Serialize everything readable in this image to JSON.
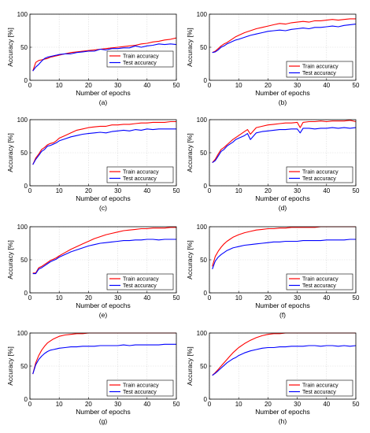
{
  "chart_data": [
    {
      "type": "line",
      "caption": "(a)",
      "xlabel": "Number of epochs",
      "ylabel": "Accuracy [%]",
      "xlim": [
        0,
        50
      ],
      "ylim": [
        0,
        100
      ],
      "xticks": [
        0,
        10,
        20,
        30,
        40,
        50
      ],
      "yticks": [
        0,
        50,
        100
      ],
      "grid": true,
      "legend_position": "right-middle",
      "x": [
        1,
        2,
        3,
        4,
        5,
        6,
        7,
        8,
        9,
        10,
        12,
        14,
        16,
        18,
        20,
        22,
        24,
        26,
        28,
        30,
        32,
        34,
        36,
        38,
        40,
        42,
        44,
        46,
        48,
        50
      ],
      "series": [
        {
          "name": "Train accuracy",
          "color": "#ff0000",
          "values": [
            14,
            27,
            30,
            31,
            32,
            33,
            35,
            36,
            37,
            38,
            40,
            42,
            43,
            44,
            45,
            46,
            47,
            48,
            49,
            50,
            51,
            52,
            53,
            55,
            56,
            58,
            59,
            61,
            62,
            64
          ]
        },
        {
          "name": "Test accuracy",
          "color": "#0000ff",
          "values": [
            14,
            20,
            24,
            29,
            33,
            35,
            36,
            37,
            38,
            39,
            40,
            40,
            42,
            43,
            44,
            44,
            47,
            46,
            48,
            48,
            49,
            49,
            52,
            50,
            52,
            53,
            55,
            54,
            55,
            54
          ]
        }
      ]
    },
    {
      "type": "line",
      "caption": "(b)",
      "xlabel": "Number of epochs",
      "ylabel": "Accuracy [%]",
      "xlim": [
        0,
        50
      ],
      "ylim": [
        0,
        100
      ],
      "xticks": [
        0,
        10,
        20,
        30,
        40,
        50
      ],
      "yticks": [
        0,
        50,
        100
      ],
      "grid": true,
      "legend_position": "bottom-right",
      "x": [
        1,
        2,
        3,
        4,
        5,
        6,
        7,
        8,
        9,
        10,
        12,
        14,
        16,
        18,
        20,
        22,
        24,
        26,
        28,
        30,
        32,
        34,
        36,
        38,
        40,
        42,
        44,
        46,
        48,
        50
      ],
      "series": [
        {
          "name": "Train accuracy",
          "color": "#ff0000",
          "values": [
            42,
            44,
            48,
            52,
            55,
            57,
            60,
            63,
            66,
            68,
            72,
            75,
            78,
            80,
            82,
            84,
            86,
            85,
            87,
            88,
            89,
            88,
            90,
            90,
            91,
            92,
            91,
            92,
            93,
            93
          ]
        },
        {
          "name": "Test accuracy",
          "color": "#0000ff",
          "values": [
            42,
            43,
            46,
            50,
            52,
            55,
            57,
            59,
            61,
            62,
            65,
            68,
            70,
            72,
            74,
            75,
            76,
            75,
            77,
            78,
            79,
            78,
            80,
            80,
            81,
            82,
            81,
            83,
            84,
            85
          ]
        }
      ]
    },
    {
      "type": "line",
      "caption": "(c)",
      "xlabel": "Number of epochs",
      "ylabel": "Accuracy [%]",
      "xlim": [
        0,
        50
      ],
      "ylim": [
        0,
        100
      ],
      "xticks": [
        0,
        10,
        20,
        30,
        40,
        50
      ],
      "yticks": [
        0,
        50,
        100
      ],
      "grid": true,
      "legend_position": "bottom-right",
      "x": [
        1,
        2,
        3,
        4,
        5,
        6,
        7,
        8,
        9,
        10,
        12,
        14,
        16,
        18,
        20,
        22,
        24,
        26,
        28,
        30,
        32,
        34,
        36,
        38,
        40,
        42,
        44,
        46,
        48,
        50
      ],
      "series": [
        {
          "name": "Train accuracy",
          "color": "#ff0000",
          "values": [
            32,
            42,
            48,
            55,
            58,
            62,
            64,
            65,
            68,
            72,
            76,
            80,
            84,
            86,
            88,
            89,
            90,
            90,
            92,
            92,
            93,
            93,
            94,
            95,
            95,
            96,
            96,
            96,
            97,
            97
          ]
        },
        {
          "name": "Test accuracy",
          "color": "#0000ff",
          "values": [
            32,
            40,
            46,
            52,
            55,
            60,
            61,
            63,
            65,
            68,
            71,
            74,
            76,
            78,
            79,
            80,
            81,
            80,
            82,
            83,
            84,
            83,
            85,
            84,
            86,
            85,
            86,
            86,
            86,
            86
          ]
        }
      ]
    },
    {
      "type": "line",
      "caption": "(d)",
      "xlabel": "Number of epochs",
      "ylabel": "Accuracy [%]",
      "xlim": [
        0,
        50
      ],
      "ylim": [
        0,
        100
      ],
      "xticks": [
        0,
        10,
        20,
        30,
        40,
        50
      ],
      "yticks": [
        0,
        50,
        100
      ],
      "grid": true,
      "legend_position": "bottom-right",
      "x": [
        1,
        2,
        3,
        4,
        5,
        6,
        7,
        8,
        9,
        10,
        12,
        13,
        14,
        16,
        18,
        20,
        22,
        24,
        26,
        28,
        30,
        31,
        32,
        34,
        36,
        38,
        40,
        42,
        44,
        46,
        48,
        50
      ],
      "series": [
        {
          "name": "Train accuracy",
          "color": "#ff0000",
          "values": [
            35,
            40,
            48,
            55,
            58,
            62,
            66,
            70,
            73,
            76,
            82,
            85,
            78,
            88,
            90,
            92,
            93,
            94,
            95,
            95,
            96,
            88,
            96,
            97,
            97,
            98,
            97,
            98,
            98,
            98,
            99,
            97
          ]
        },
        {
          "name": "Test accuracy",
          "color": "#0000ff",
          "values": [
            35,
            38,
            45,
            52,
            55,
            60,
            63,
            66,
            70,
            72,
            76,
            79,
            70,
            80,
            82,
            83,
            84,
            85,
            85,
            86,
            86,
            80,
            87,
            87,
            86,
            87,
            87,
            88,
            87,
            88,
            87,
            88
          ]
        }
      ]
    },
    {
      "type": "line",
      "caption": "(e)",
      "xlabel": "Number of epochs",
      "ylabel": "Accuracy [%]",
      "xlim": [
        0,
        50
      ],
      "ylim": [
        0,
        100
      ],
      "xticks": [
        0,
        10,
        20,
        30,
        40,
        50
      ],
      "yticks": [
        0,
        50,
        100
      ],
      "grid": true,
      "legend_position": "bottom-right",
      "x": [
        1,
        2,
        3,
        4,
        5,
        6,
        7,
        8,
        9,
        10,
        12,
        14,
        16,
        18,
        20,
        22,
        24,
        26,
        28,
        30,
        32,
        34,
        36,
        38,
        40,
        42,
        44,
        46,
        48,
        50
      ],
      "series": [
        {
          "name": "Train accuracy",
          "color": "#ff0000",
          "values": [
            30,
            30,
            38,
            40,
            43,
            46,
            49,
            51,
            53,
            56,
            61,
            66,
            70,
            74,
            78,
            82,
            85,
            88,
            90,
            92,
            94,
            95,
            96,
            97,
            97,
            98,
            98,
            98,
            99,
            99
          ]
        },
        {
          "name": "Test accuracy",
          "color": "#0000ff",
          "values": [
            29,
            29,
            36,
            38,
            41,
            44,
            47,
            49,
            51,
            54,
            58,
            62,
            65,
            68,
            71,
            73,
            75,
            76,
            77,
            78,
            79,
            79,
            80,
            80,
            81,
            81,
            80,
            81,
            81,
            81
          ]
        }
      ]
    },
    {
      "type": "line",
      "caption": "(f)",
      "xlabel": "Number of epochs",
      "ylabel": "Accuracy [%]",
      "xlim": [
        0,
        50
      ],
      "ylim": [
        0,
        100
      ],
      "xticks": [
        0,
        10,
        20,
        30,
        40,
        50
      ],
      "yticks": [
        0,
        50,
        100
      ],
      "grid": true,
      "legend_position": "bottom-right",
      "x": [
        1,
        2,
        3,
        4,
        5,
        6,
        7,
        8,
        9,
        10,
        12,
        14,
        16,
        18,
        20,
        22,
        24,
        26,
        28,
        30,
        32,
        34,
        36,
        38,
        40,
        42,
        44,
        46,
        48,
        50
      ],
      "series": [
        {
          "name": "Train accuracy",
          "color": "#ff0000",
          "values": [
            40,
            55,
            63,
            69,
            74,
            78,
            81,
            84,
            86,
            88,
            91,
            93,
            95,
            96,
            97,
            97,
            98,
            98,
            99,
            99,
            99,
            99,
            99,
            100,
            100,
            100,
            100,
            100,
            100,
            100
          ]
        },
        {
          "name": "Test accuracy",
          "color": "#0000ff",
          "values": [
            36,
            48,
            54,
            58,
            61,
            64,
            66,
            68,
            69,
            70,
            72,
            73,
            74,
            75,
            76,
            77,
            77,
            78,
            78,
            78,
            79,
            79,
            79,
            79,
            80,
            80,
            80,
            80,
            81,
            81
          ]
        }
      ]
    },
    {
      "type": "line",
      "caption": "(g)",
      "xlabel": "Number of epochs",
      "ylabel": "Accuracy [%]",
      "xlim": [
        0,
        50
      ],
      "ylim": [
        0,
        100
      ],
      "xticks": [
        0,
        10,
        20,
        30,
        40,
        50
      ],
      "yticks": [
        0,
        50,
        100
      ],
      "grid": true,
      "legend_position": "bottom-right",
      "x": [
        1,
        2,
        3,
        4,
        5,
        6,
        7,
        8,
        9,
        10,
        12,
        14,
        16,
        18,
        20,
        22,
        24,
        26,
        28,
        30,
        32,
        34,
        36,
        38,
        40,
        42,
        44,
        46,
        48,
        50
      ],
      "series": [
        {
          "name": "Train accuracy",
          "color": "#ff0000",
          "values": [
            38,
            55,
            66,
            74,
            80,
            85,
            88,
            91,
            93,
            95,
            97,
            98,
            99,
            99,
            100,
            100,
            100,
            100,
            100,
            100,
            100,
            100,
            100,
            100,
            100,
            100,
            100,
            100,
            100,
            100
          ]
        },
        {
          "name": "Test accuracy",
          "color": "#0000ff",
          "values": [
            38,
            52,
            60,
            65,
            69,
            72,
            74,
            75,
            76,
            77,
            78,
            79,
            79,
            80,
            80,
            80,
            81,
            81,
            81,
            81,
            82,
            81,
            82,
            82,
            82,
            82,
            82,
            83,
            83,
            83
          ]
        }
      ]
    },
    {
      "type": "line",
      "caption": "(h)",
      "xlabel": "Number of epochs",
      "ylabel": "Accuracy [%]",
      "xlim": [
        0,
        50
      ],
      "ylim": [
        0,
        100
      ],
      "xticks": [
        0,
        10,
        20,
        30,
        40,
        50
      ],
      "yticks": [
        0,
        50,
        100
      ],
      "grid": true,
      "legend_position": "bottom-right",
      "x": [
        1,
        2,
        3,
        4,
        5,
        6,
        7,
        8,
        9,
        10,
        12,
        14,
        16,
        18,
        20,
        22,
        24,
        26,
        28,
        30,
        32,
        34,
        36,
        38,
        40,
        42,
        44,
        46,
        48,
        50
      ],
      "series": [
        {
          "name": "Train accuracy",
          "color": "#ff0000",
          "values": [
            36,
            40,
            45,
            50,
            55,
            60,
            65,
            70,
            74,
            78,
            84,
            89,
            93,
            96,
            98,
            99,
            99,
            100,
            100,
            100,
            100,
            100,
            100,
            100,
            100,
            100,
            100,
            100,
            100,
            100
          ]
        },
        {
          "name": "Test accuracy",
          "color": "#0000ff",
          "values": [
            36,
            39,
            43,
            47,
            51,
            55,
            58,
            61,
            63,
            66,
            70,
            73,
            75,
            77,
            78,
            78,
            79,
            79,
            80,
            80,
            80,
            81,
            81,
            80,
            81,
            81,
            80,
            81,
            80,
            81
          ]
        }
      ]
    }
  ]
}
